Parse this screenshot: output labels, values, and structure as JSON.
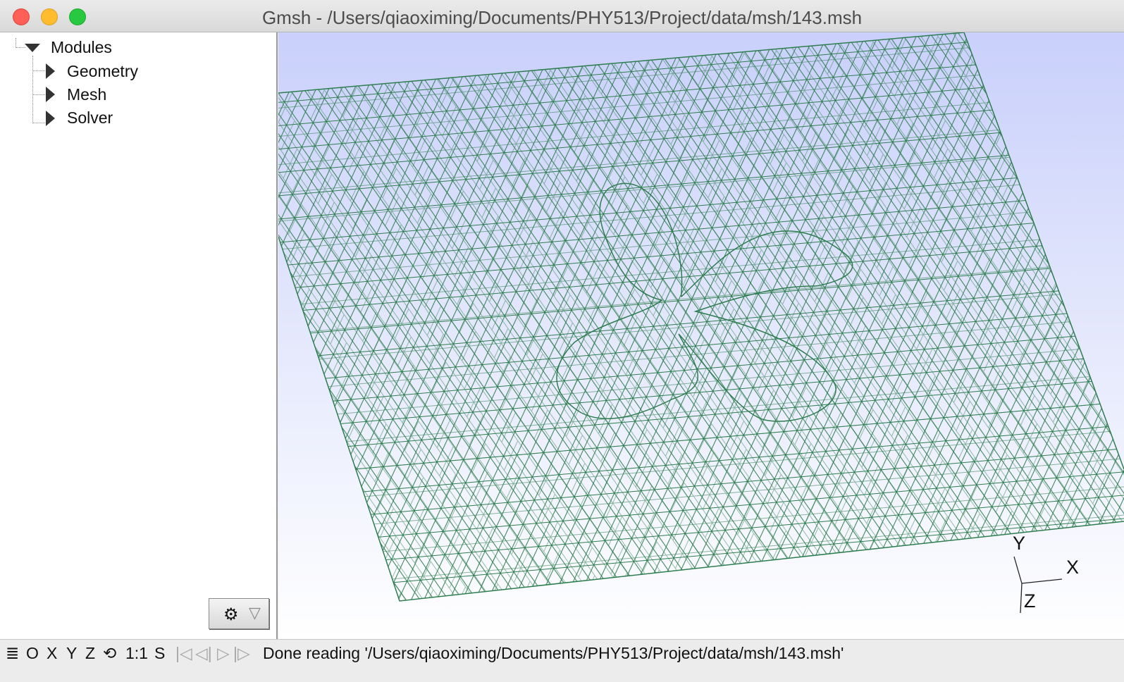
{
  "window": {
    "title": "Gmsh - /Users/qiaoximing/Documents/PHY513/Project/data/msh/143.msh"
  },
  "tree": {
    "root_label": "Modules",
    "items": [
      {
        "label": "Geometry"
      },
      {
        "label": "Mesh"
      },
      {
        "label": "Solver"
      }
    ]
  },
  "viewport": {
    "axes": {
      "x": "X",
      "y": "Y",
      "z": "Z"
    },
    "mesh_color": "#2e7d4f",
    "background_top": "#c9d0fb",
    "background_bottom": "#ffffff"
  },
  "statusbar": {
    "menu_icon": "≣",
    "buttons": [
      "O",
      "X",
      "Y",
      "Z",
      "⟲",
      "1:1",
      "S"
    ],
    "playback_icons": [
      "first-frame-icon",
      "step-back-icon",
      "play-icon",
      "step-forward-icon"
    ],
    "message": "Done reading '/Users/qiaoximing/Documents/PHY513/Project/data/msh/143.msh'"
  },
  "icons": {
    "settings": "gear-icon",
    "options": "dropdown-icon"
  }
}
